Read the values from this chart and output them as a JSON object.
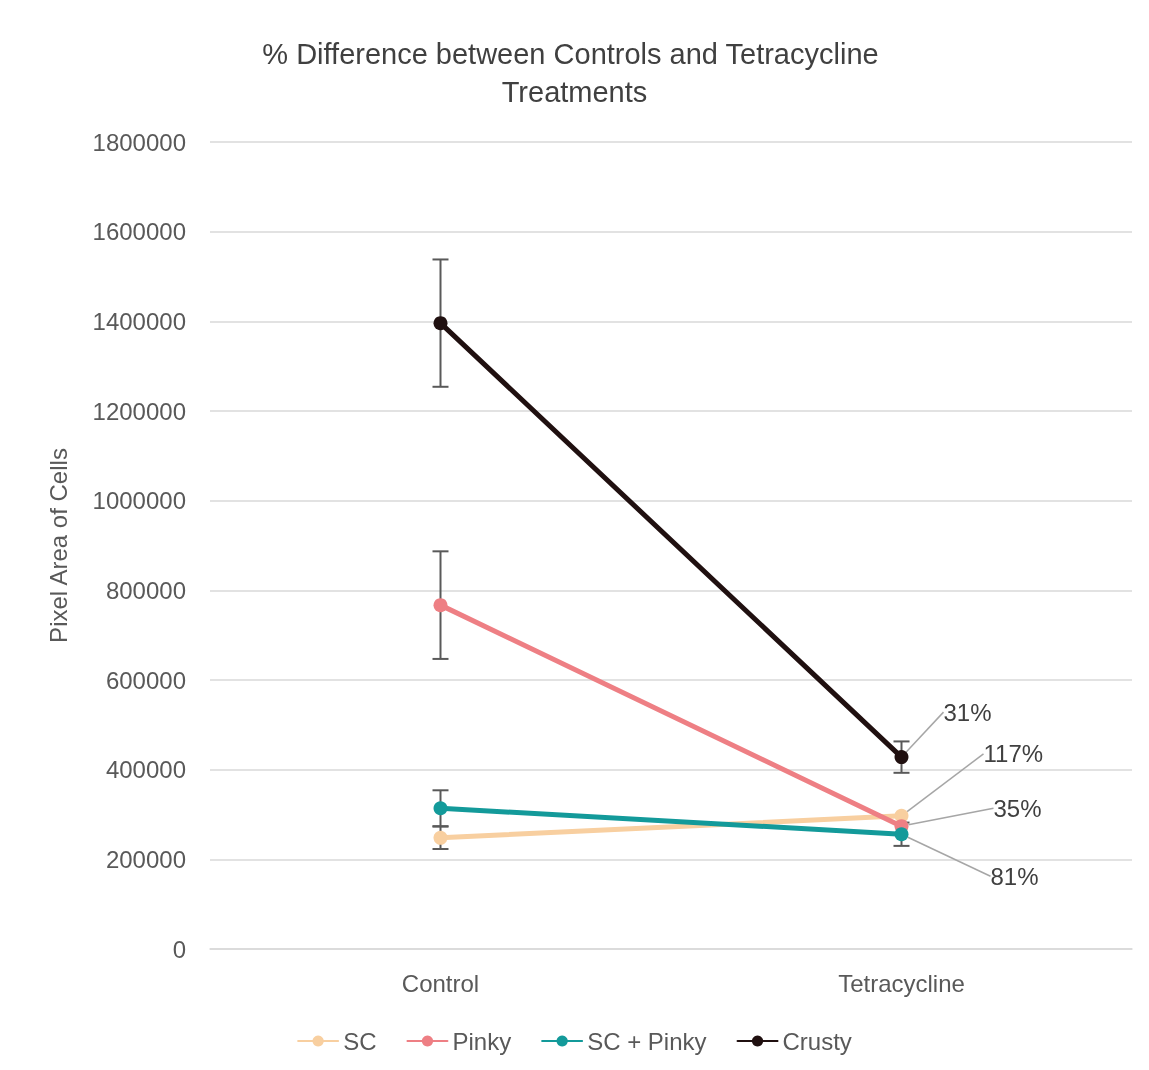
{
  "chart_data": {
    "type": "line",
    "title": "% Difference between Controls and Tetracycline Treatments",
    "ylabel": "Pixel Area of Cells",
    "categories": [
      "Control",
      "Tetracycline"
    ],
    "series": [
      {
        "name": "SC",
        "color": "#f8cfa0",
        "values": [
          248000,
          297000
        ],
        "errors": [
          25000,
          null
        ]
      },
      {
        "name": "Pinky",
        "color": "#ee7f84",
        "values": [
          767000,
          274000
        ],
        "errors": [
          120000,
          null
        ]
      },
      {
        "name": "SC + Pinky",
        "color": "#139a9a",
        "values": [
          314000,
          256000
        ],
        "errors": [
          40000,
          26000
        ]
      },
      {
        "name": "Crusty",
        "color": "#201010",
        "values": [
          1396000,
          428000
        ],
        "errors": [
          142000,
          35000
        ]
      }
    ],
    "annotations": [
      {
        "text": "31%",
        "x": "Tetracycline",
        "y": 428000
      },
      {
        "text": "117%",
        "x": "Tetracycline",
        "y": 297000
      },
      {
        "text": "35%",
        "x": "Tetracycline",
        "y": 274000
      },
      {
        "text": "81%",
        "x": "Tetracycline",
        "y": 256000
      }
    ],
    "ylim": [
      0,
      1800000
    ],
    "yticks": [
      0,
      200000,
      400000,
      600000,
      800000,
      1000000,
      1200000,
      1400000,
      1600000,
      1800000
    ],
    "grid": "y",
    "legend": "bottom",
    "marker": "circle",
    "line_style": "solid"
  }
}
